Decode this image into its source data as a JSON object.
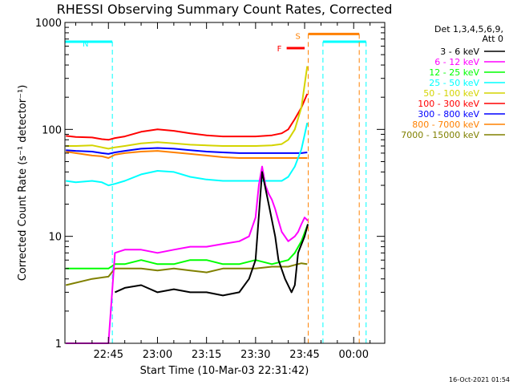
{
  "chart_data": {
    "type": "line",
    "title": "RHESSI Observing Summary Count Rates, Corrected",
    "xlabel": "Start Time (10-Mar-03 22:31:42)",
    "ylabel": "Corrected Count Rate (s⁻¹ detector⁻¹)",
    "y_scale": "log",
    "ylim": [
      1,
      1000
    ],
    "xlim_minutes_after_2230": [
      1.7,
      99.5
    ],
    "grid": false,
    "y_ticks": [
      {
        "value": 1,
        "label": "1"
      },
      {
        "value": 10,
        "label": "10"
      },
      {
        "value": 100,
        "label": "100"
      },
      {
        "value": 1000,
        "label": "1000"
      }
    ],
    "x_ticks": [
      {
        "t": 15,
        "label": "22:45"
      },
      {
        "t": 30,
        "label": "23:00"
      },
      {
        "t": 45,
        "label": "23:15"
      },
      {
        "t": 60,
        "label": "23:30"
      },
      {
        "t": 75,
        "label": "23:45"
      },
      {
        "t": 90,
        "label": "00:00"
      }
    ],
    "legend_title": [
      "Det 1,3,4,5,6,9,",
      "Att 0"
    ],
    "legend_position": "right",
    "series": [
      {
        "name": "3 - 6 keV",
        "color": "#000000",
        "points": [
          [
            17,
            3
          ],
          [
            20,
            3.3
          ],
          [
            25,
            3.5
          ],
          [
            30,
            3
          ],
          [
            35,
            3.2
          ],
          [
            40,
            3
          ],
          [
            45,
            3
          ],
          [
            50,
            2.8
          ],
          [
            55,
            3
          ],
          [
            58,
            4
          ],
          [
            60,
            6
          ],
          [
            62,
            40
          ],
          [
            64,
            20
          ],
          [
            66,
            10
          ],
          [
            67,
            6
          ],
          [
            69,
            4
          ],
          [
            71,
            3
          ],
          [
            72,
            3.5
          ],
          [
            73,
            7
          ],
          [
            75,
            10
          ],
          [
            76,
            13
          ]
        ]
      },
      {
        "name": "6 - 12 keV",
        "color": "#ff00ff",
        "points": [
          [
            2,
            1
          ],
          [
            10,
            1
          ],
          [
            15,
            1
          ],
          [
            17,
            7
          ],
          [
            20,
            7.5
          ],
          [
            25,
            7.5
          ],
          [
            30,
            7
          ],
          [
            35,
            7.5
          ],
          [
            40,
            8
          ],
          [
            45,
            8
          ],
          [
            50,
            8.5
          ],
          [
            55,
            9
          ],
          [
            58,
            10
          ],
          [
            60,
            15
          ],
          [
            61,
            30
          ],
          [
            62,
            45
          ],
          [
            63,
            30
          ],
          [
            64,
            25
          ],
          [
            65,
            22
          ],
          [
            66,
            18
          ],
          [
            67,
            14
          ],
          [
            68,
            11
          ],
          [
            70,
            9
          ],
          [
            72,
            10
          ],
          [
            73,
            11
          ],
          [
            74,
            13
          ],
          [
            75,
            15
          ],
          [
            76,
            14
          ]
        ]
      },
      {
        "name": "12 - 25 keV",
        "color": "#00ff00",
        "points": [
          [
            2,
            5
          ],
          [
            10,
            5
          ],
          [
            15,
            5
          ],
          [
            17,
            5.5
          ],
          [
            20,
            5.5
          ],
          [
            25,
            6
          ],
          [
            30,
            5.5
          ],
          [
            35,
            5.5
          ],
          [
            40,
            6
          ],
          [
            45,
            6
          ],
          [
            50,
            5.5
          ],
          [
            55,
            5.5
          ],
          [
            60,
            6
          ],
          [
            65,
            5.5
          ],
          [
            70,
            6
          ],
          [
            72,
            7
          ],
          [
            74,
            9
          ],
          [
            76,
            13
          ]
        ]
      },
      {
        "name": "25 - 50 keV",
        "color": "#00ffff",
        "points": [
          [
            2,
            33
          ],
          [
            5,
            32
          ],
          [
            10,
            33
          ],
          [
            13,
            32
          ],
          [
            15,
            30
          ],
          [
            17,
            31
          ],
          [
            20,
            33
          ],
          [
            25,
            38
          ],
          [
            30,
            41
          ],
          [
            35,
            40
          ],
          [
            40,
            36
          ],
          [
            45,
            34
          ],
          [
            50,
            33
          ],
          [
            55,
            33
          ],
          [
            60,
            33
          ],
          [
            65,
            33
          ],
          [
            68,
            33
          ],
          [
            70,
            36
          ],
          [
            72,
            45
          ],
          [
            74,
            65
          ],
          [
            75.8,
            115
          ]
        ]
      },
      {
        "name": "50 - 100 keV",
        "color": "#d4d400",
        "points": [
          [
            2,
            70
          ],
          [
            5,
            70
          ],
          [
            10,
            71
          ],
          [
            13,
            68
          ],
          [
            15,
            66
          ],
          [
            17,
            68
          ],
          [
            20,
            70
          ],
          [
            25,
            74
          ],
          [
            30,
            76
          ],
          [
            35,
            74
          ],
          [
            40,
            72
          ],
          [
            45,
            71
          ],
          [
            50,
            70
          ],
          [
            55,
            70
          ],
          [
            60,
            70
          ],
          [
            65,
            71
          ],
          [
            68,
            73
          ],
          [
            70,
            80
          ],
          [
            72,
            100
          ],
          [
            74,
            160
          ],
          [
            75.8,
            390
          ]
        ]
      },
      {
        "name": "100 - 300 keV",
        "color": "#ff0000",
        "points": [
          [
            2,
            87
          ],
          [
            5,
            85
          ],
          [
            10,
            84
          ],
          [
            13,
            81
          ],
          [
            15,
            80
          ],
          [
            17,
            83
          ],
          [
            20,
            86
          ],
          [
            25,
            95
          ],
          [
            30,
            100
          ],
          [
            35,
            97
          ],
          [
            40,
            92
          ],
          [
            45,
            88
          ],
          [
            50,
            86
          ],
          [
            55,
            86
          ],
          [
            60,
            86
          ],
          [
            65,
            88
          ],
          [
            68,
            92
          ],
          [
            70,
            100
          ],
          [
            72,
            125
          ],
          [
            74,
            160
          ],
          [
            75.8,
            215
          ]
        ]
      },
      {
        "name": "300 - 800 keV",
        "color": "#0000ff",
        "points": [
          [
            2,
            64
          ],
          [
            5,
            63
          ],
          [
            10,
            62
          ],
          [
            13,
            60
          ],
          [
            15,
            59
          ],
          [
            17,
            61
          ],
          [
            20,
            63
          ],
          [
            25,
            66
          ],
          [
            30,
            67
          ],
          [
            35,
            66
          ],
          [
            40,
            64
          ],
          [
            45,
            62
          ],
          [
            50,
            61
          ],
          [
            55,
            60
          ],
          [
            60,
            60
          ],
          [
            65,
            60
          ],
          [
            68,
            60
          ],
          [
            70,
            60
          ],
          [
            72,
            60
          ],
          [
            74,
            60
          ],
          [
            75.8,
            61
          ]
        ]
      },
      {
        "name": "800 - 7000 keV",
        "color": "#ff8000",
        "points": [
          [
            2,
            62
          ],
          [
            5,
            60
          ],
          [
            10,
            57
          ],
          [
            13,
            56
          ],
          [
            15,
            54
          ],
          [
            17,
            58
          ],
          [
            20,
            60
          ],
          [
            25,
            62
          ],
          [
            30,
            63
          ],
          [
            35,
            61
          ],
          [
            40,
            59
          ],
          [
            45,
            57
          ],
          [
            50,
            55
          ],
          [
            55,
            54
          ],
          [
            60,
            54
          ],
          [
            65,
            54
          ],
          [
            68,
            54
          ],
          [
            70,
            54
          ],
          [
            72,
            54
          ],
          [
            74,
            54
          ],
          [
            75.8,
            54
          ]
        ]
      },
      {
        "name": "7000 - 15000 keV",
        "color": "#808000",
        "points": [
          [
            2,
            3.5
          ],
          [
            10,
            4
          ],
          [
            15,
            4.2
          ],
          [
            17,
            5
          ],
          [
            20,
            5
          ],
          [
            25,
            5
          ],
          [
            30,
            4.8
          ],
          [
            35,
            5
          ],
          [
            40,
            4.8
          ],
          [
            45,
            4.6
          ],
          [
            50,
            5
          ],
          [
            55,
            5
          ],
          [
            60,
            5
          ],
          [
            65,
            5.2
          ],
          [
            70,
            5.2
          ],
          [
            72,
            5.4
          ],
          [
            74,
            5.6
          ],
          [
            75.8,
            5.5
          ]
        ]
      }
    ],
    "bands": [
      {
        "label": "N",
        "color": "#00ffff",
        "level": 660,
        "segments": [
          [
            1.7,
            16.2
          ],
          [
            80.6,
            93.8
          ]
        ],
        "drops": [
          16.2,
          80.6,
          93.8
        ]
      },
      {
        "label": "S",
        "color": "#ff8000",
        "level": 780,
        "segments": [
          [
            76.1,
            91.7
          ]
        ],
        "drops": [
          76.1,
          91.7
        ]
      },
      {
        "label": "F",
        "color": "#ff0000",
        "level": 575,
        "segments": [
          [
            69.5,
            75
          ]
        ],
        "drops": []
      }
    ],
    "footer": "16-Oct-2021 01:54"
  }
}
